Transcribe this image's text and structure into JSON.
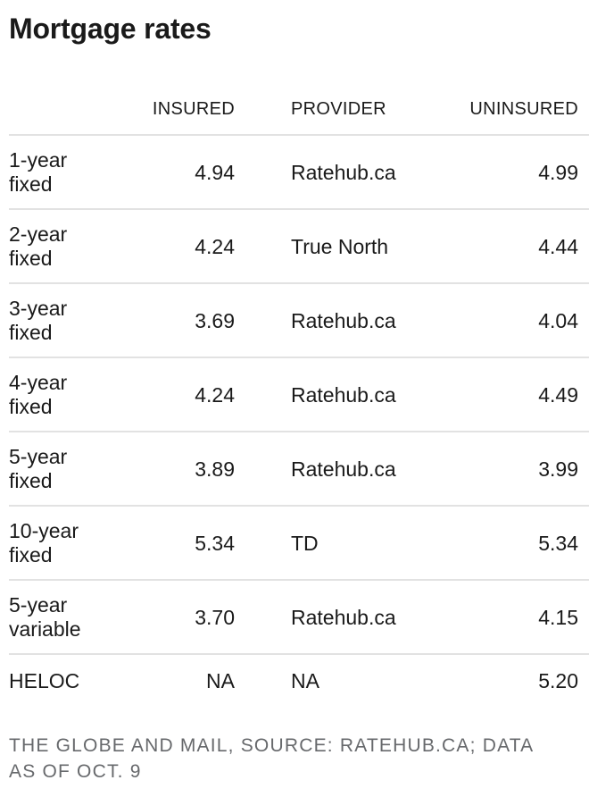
{
  "chart_data": {
    "type": "table",
    "title": "Mortgage rates",
    "columns": [
      "",
      "INSURED",
      "PROVIDER",
      "UNINSURED"
    ],
    "rows": [
      [
        "1-year fixed",
        "4.94",
        "Ratehub.ca",
        "4.99"
      ],
      [
        "2-year fixed",
        "4.24",
        "True North",
        "4.44"
      ],
      [
        "3-year fixed",
        "3.69",
        "Ratehub.ca",
        "4.04"
      ],
      [
        "4-year fixed",
        "4.24",
        "Ratehub.ca",
        "4.49"
      ],
      [
        "5-year fixed",
        "3.89",
        "Ratehub.ca",
        "3.99"
      ],
      [
        "10-year fixed",
        "5.34",
        "TD",
        "5.34"
      ],
      [
        "5-year variable",
        "3.70",
        "Ratehub.ca",
        "4.15"
      ],
      [
        "HELOC",
        "NA",
        "NA",
        "5.20"
      ]
    ],
    "source": "THE GLOBE AND MAIL, SOURCE: RATEHUB.CA; DATA AS OF OCT. 9",
    "layout": "row labels left-aligned; INSURED and UNINSURED columns right-aligned; PROVIDER left-aligned; light gray rules between rows"
  },
  "footer": {
    "lines": [
      "THE GLOBE AND MAIL, SOURCE: RATEHUB.CA; DATA",
      "AS OF OCT. 9"
    ]
  },
  "colors": {
    "text": "#1a1a1a",
    "divider": "#e2e2e2",
    "footer_text": "#67696c",
    "background": "#ffffff"
  }
}
